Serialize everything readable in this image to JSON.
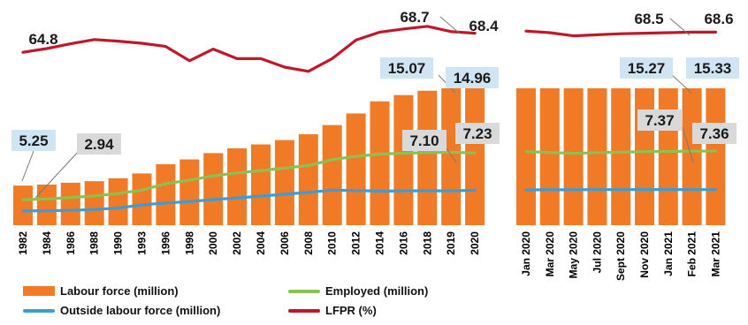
{
  "chart_data": {
    "type": "bar",
    "panels": [
      {
        "name": "annual",
        "categories": [
          "1982",
          "1984",
          "1986",
          "1988",
          "1990",
          "1993",
          "1996",
          "1998",
          "2000",
          "2002",
          "2004",
          "2006",
          "2008",
          "2010",
          "2012",
          "2014",
          "2016",
          "2018",
          "2019",
          "2020"
        ],
        "series": [
          {
            "name": "Labour force (million)",
            "type": "bar",
            "color": "#F07A26",
            "values": [
              8.19,
              8.4,
              8.78,
              9.1,
              9.7,
              10.7,
              12.6,
              13.6,
              14.9,
              15.9,
              16.7,
              17.6,
              18.8,
              20.7,
              23.1,
              25.6,
              26.9,
              27.8,
              28.3,
              28.3
            ]
          },
          {
            "name": "Employed (million)",
            "type": "line",
            "color": "#8CC152",
            "values": [
              5.25,
              5.43,
              5.74,
              6.05,
              6.55,
              7.25,
              8.6,
              9.3,
              10.2,
              10.8,
              11.3,
              11.8,
              12.35,
              13.55,
              14.25,
              14.7,
              14.88,
              15.0,
              15.07,
              14.96
            ]
          },
          {
            "name": "Outside labour force (million)",
            "type": "line",
            "color": "#3B9DD8",
            "values": [
              2.94,
              3.0,
              3.07,
              3.25,
              3.55,
              4.2,
              4.6,
              4.9,
              5.3,
              5.65,
              6.0,
              6.4,
              6.8,
              7.25,
              7.15,
              7.05,
              7.1,
              7.12,
              7.1,
              7.23
            ]
          },
          {
            "name": "LFPR (%)",
            "type": "line",
            "color": "#C0182B",
            "values": [
              64.8,
              65.5,
              66.4,
              67.2,
              66.9,
              66.5,
              65.9,
              63.2,
              65.4,
              63.6,
              63.6,
              62.0,
              61.2,
              63.6,
              67.1,
              68.6,
              69.2,
              69.7,
              68.7,
              68.4
            ]
          }
        ],
        "data_labels": {
          "employed_first": "5.25",
          "outside_first": "2.94",
          "employed_last": [
            "15.07",
            "14.96"
          ],
          "outside_last": [
            "7.10",
            "7.23"
          ],
          "lfpr_first": "64.8",
          "lfpr_last": [
            "68.7",
            "68.4"
          ]
        }
      },
      {
        "name": "monthly",
        "categories": [
          "Jan 2020",
          "Mar 2020",
          "May 2020",
          "Jul 2020",
          "Sept 2020",
          "Nov 2020",
          "Jan 2021",
          "Feb 2021",
          "Mar 2021"
        ],
        "series": [
          {
            "name": "Labour force (million)",
            "type": "bar",
            "color": "#F07A26",
            "values": [
              28.3,
              28.3,
              28.3,
              28.3,
              28.3,
              28.3,
              28.3,
              28.3,
              28.3
            ]
          },
          {
            "name": "Employed (million)",
            "type": "line",
            "color": "#8CC152",
            "values": [
              15.2,
              15.05,
              14.85,
              15.0,
              15.1,
              15.2,
              15.27,
              15.3,
              15.33
            ]
          },
          {
            "name": "Outside labour force (million)",
            "type": "line",
            "color": "#3B9DD8",
            "values": [
              7.3,
              7.32,
              7.33,
              7.35,
              7.36,
              7.37,
              7.37,
              7.36,
              7.36
            ]
          },
          {
            "name": "LFPR (%)",
            "type": "line",
            "color": "#C0182B",
            "values": [
              68.8,
              68.5,
              67.9,
              68.1,
              68.3,
              68.4,
              68.5,
              68.6,
              68.6
            ]
          }
        ],
        "data_labels": {
          "employed_last": [
            "15.27",
            "15.33"
          ],
          "outside_last": [
            "7.37",
            "7.36"
          ],
          "lfpr_last": [
            "68.5",
            "68.6"
          ]
        }
      }
    ],
    "legend": {
      "position": "bottom-left",
      "items": [
        {
          "label": "Labour force (million)",
          "kind": "box",
          "color": "#F07A26"
        },
        {
          "label": "Employed (million)",
          "kind": "line",
          "color": "#8CC152"
        },
        {
          "label": "Outside labour force (million)",
          "kind": "line",
          "color": "#3B9DD8"
        },
        {
          "label": "LFPR (%)",
          "kind": "line",
          "color": "#C0182B"
        }
      ]
    },
    "title": "",
    "xlabel": "",
    "ylabel": "",
    "grid": false
  }
}
